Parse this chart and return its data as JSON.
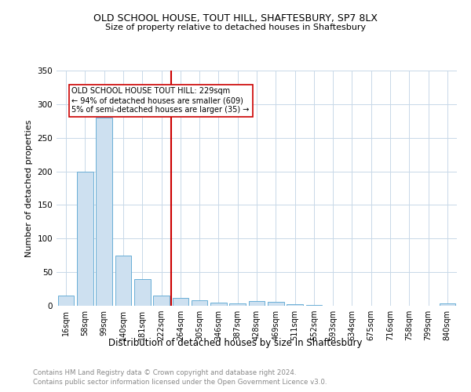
{
  "title_line1": "OLD SCHOOL HOUSE, TOUT HILL, SHAFTESBURY, SP7 8LX",
  "title_line2": "Size of property relative to detached houses in Shaftesbury",
  "xlabel": "Distribution of detached houses by size in Shaftesbury",
  "ylabel": "Number of detached properties",
  "bar_labels": [
    "16sqm",
    "58sqm",
    "99sqm",
    "140sqm",
    "181sqm",
    "222sqm",
    "264sqm",
    "305sqm",
    "346sqm",
    "387sqm",
    "428sqm",
    "469sqm",
    "511sqm",
    "552sqm",
    "593sqm",
    "634sqm",
    "675sqm",
    "716sqm",
    "758sqm",
    "799sqm",
    "840sqm"
  ],
  "bar_values": [
    15,
    200,
    280,
    75,
    40,
    15,
    12,
    8,
    5,
    3,
    7,
    6,
    2,
    1,
    0,
    0,
    0,
    0,
    0,
    0,
    3
  ],
  "bar_color": "#cde0f0",
  "bar_edgecolor": "#6aaed6",
  "vline_x": 5.5,
  "vline_color": "#cc0000",
  "annotation_text": "OLD SCHOOL HOUSE TOUT HILL: 229sqm\n← 94% of detached houses are smaller (609)\n5% of semi-detached houses are larger (35) →",
  "annotation_box_edgecolor": "#cc0000",
  "annotation_box_facecolor": "#ffffff",
  "ylim": [
    0,
    350
  ],
  "yticks": [
    0,
    50,
    100,
    150,
    200,
    250,
    300,
    350
  ],
  "footer_line1": "Contains HM Land Registry data © Crown copyright and database right 2024.",
  "footer_line2": "Contains public sector information licensed under the Open Government Licence v3.0.",
  "background_color": "#ffffff",
  "grid_color": "#c8d8e8"
}
